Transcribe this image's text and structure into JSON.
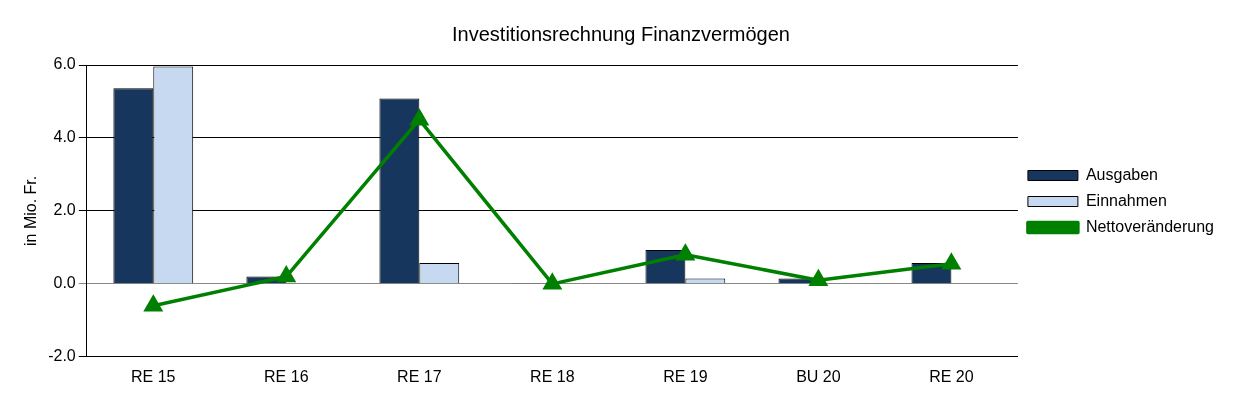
{
  "chart_data": {
    "type": "bar",
    "title": "Investitionsrechnung Finanzvermögen",
    "ylabel": "in Mio. Fr.",
    "categories": [
      "RE 15",
      "RE 16",
      "RE 17",
      "RE 18",
      "RE 19",
      "BU 20",
      "RE 20"
    ],
    "series": [
      {
        "name": "Ausgaben",
        "color": "#17365d",
        "values": [
          5.36,
          0.2,
          5.08,
          0.02,
          0.93,
          0.15,
          0.57
        ]
      },
      {
        "name": "Einnahmen",
        "color": "#c6d9f1",
        "values": [
          5.96,
          0,
          0.57,
          0,
          0.15,
          0,
          0
        ]
      },
      {
        "name": "Nettoveränderung",
        "type": "line",
        "color": "#008000",
        "marker": "triangle",
        "values": [
          -0.6,
          0.2,
          4.5,
          0,
          0.8,
          0.1,
          0.55
        ]
      }
    ],
    "ylim": [
      -2,
      6
    ],
    "yticks": [
      {
        "value": -2,
        "label": "-2.0"
      },
      {
        "value": 0,
        "label": "0.0"
      },
      {
        "value": 2,
        "label": "2.0"
      },
      {
        "value": 4,
        "label": "4.0"
      },
      {
        "value": 6,
        "label": "6.0"
      }
    ],
    "grid": "y",
    "legend": "right"
  }
}
